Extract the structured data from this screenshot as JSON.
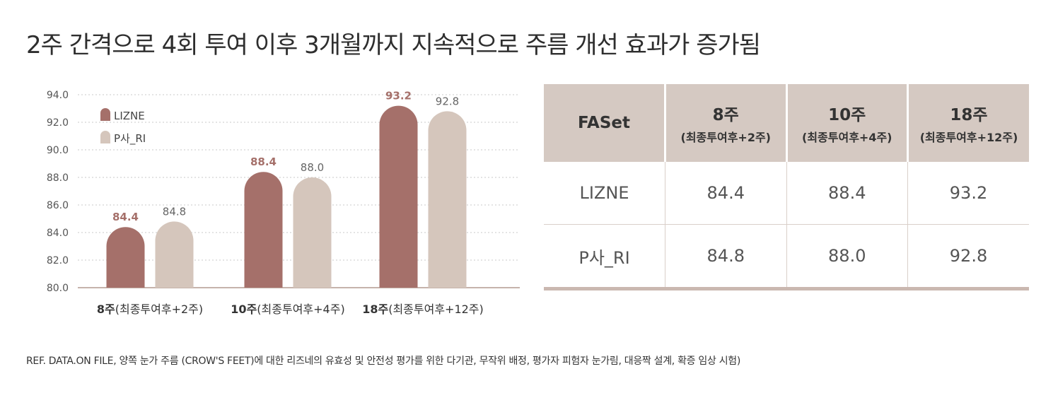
{
  "title": "2주 간격으로 4회 투여 이후 3개월까지 지속적으로 주름 개선 효과가 증가됨",
  "chart_data": {
    "type": "bar",
    "categories": [
      {
        "bold": "8주",
        "rest": "(최종투여후+2주)"
      },
      {
        "bold": "10주",
        "rest": "(최종투여후+4주)"
      },
      {
        "bold": "18주",
        "rest": "(최종투여후+12주)"
      }
    ],
    "series": [
      {
        "name": "LIZNE",
        "values": [
          84.4,
          88.4,
          93.2
        ],
        "value_labels": [
          "84.4",
          "88.4",
          "93.2"
        ],
        "color": "#a5706a"
      },
      {
        "name": "P사_RI",
        "values": [
          84.8,
          88.0,
          92.8
        ],
        "value_labels": [
          "84.8",
          "88.0",
          "92.8"
        ],
        "color": "#d5c6bc"
      }
    ],
    "ylim": [
      80.0,
      94.0
    ],
    "yticks": [
      "80.0",
      "82.0",
      "84.0",
      "86.0",
      "88.0",
      "90.0",
      "92.0",
      "94.0"
    ],
    "grid": true,
    "legend": "top-left"
  },
  "table": {
    "corner": "FASet",
    "columns": [
      {
        "main": "8주",
        "sub": "(최종투여후+2주)"
      },
      {
        "main": "10주",
        "sub": "(최종투여후+4주)"
      },
      {
        "main": "18주",
        "sub": "(최종투여후+12주)"
      }
    ],
    "rows": [
      {
        "label": "LIZNE",
        "values": [
          "84.4",
          "88.4",
          "93.2"
        ]
      },
      {
        "label": "P사_RI",
        "values": [
          "84.8",
          "88.0",
          "92.8"
        ]
      }
    ]
  },
  "reference": "REF. DATA.ON FILE, 양쪽 눈가 주름 (CROW'S FEET)에 대한 리즈네의 유효성 및 안전성 평가를 위한 다기관, 무작위 배정,  평가자 피험자 눈가림, 대응짝 설계, 확증 임상 시험)",
  "colors": {
    "primary": "#a5706a",
    "secondary": "#d5c6bc",
    "header": "#d5c9c2"
  }
}
